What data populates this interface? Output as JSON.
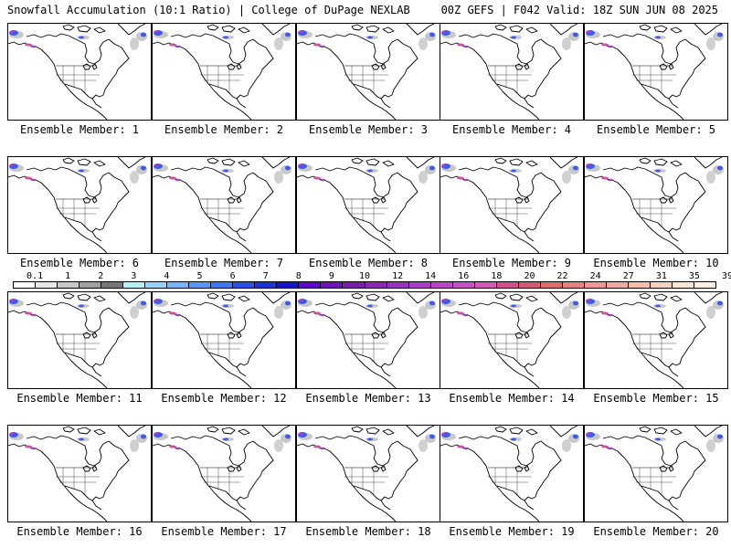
{
  "header": {
    "left": "Snowfall Accumulation (10:1 Ratio) | College of DuPage NEXLAB",
    "right": "00Z GEFS | F042 Valid: 18Z SUN JUN 08 2025"
  },
  "colors": {
    "map_lines": "#000000",
    "snow_light": "#c8c8c8",
    "snow_blue": "#3c5af0",
    "snow_purple": "#a040c0",
    "snow_pink": "#d050a0"
  },
  "panels": [
    {
      "caption": "Ensemble Member: 1"
    },
    {
      "caption": "Ensemble Member: 2"
    },
    {
      "caption": "Ensemble Member: 3"
    },
    {
      "caption": "Ensemble Member: 4"
    },
    {
      "caption": "Ensemble Member: 5"
    },
    {
      "caption": "Ensemble Member: 6"
    },
    {
      "caption": "Ensemble Member: 7"
    },
    {
      "caption": "Ensemble Member: 8"
    },
    {
      "caption": "Ensemble Member: 9"
    },
    {
      "caption": "Ensemble Member: 10"
    },
    {
      "caption": "Ensemble Member: 11"
    },
    {
      "caption": "Ensemble Member: 12"
    },
    {
      "caption": "Ensemble Member: 13"
    },
    {
      "caption": "Ensemble Member: 14"
    },
    {
      "caption": "Ensemble Member: 15"
    },
    {
      "caption": "Ensemble Member: 16"
    },
    {
      "caption": "Ensemble Member: 17"
    },
    {
      "caption": "Ensemble Member: 18"
    },
    {
      "caption": "Ensemble Member: 19"
    },
    {
      "caption": "Ensemble Member: 20"
    }
  ],
  "scale": {
    "labels": [
      "0.1",
      "1",
      "2",
      "3",
      "4",
      "5",
      "6",
      "7",
      "8",
      "9",
      "10",
      "12",
      "14",
      "16",
      "18",
      "20",
      "22",
      "24",
      "27",
      "31",
      "35",
      "39"
    ],
    "colors": [
      "#ffffff",
      "#e6e6e6",
      "#c8c8c8",
      "#a0a0a0",
      "#787878",
      "#b4f0fa",
      "#96d2fa",
      "#78b4fa",
      "#5a96f5",
      "#3c78f0",
      "#2850e6",
      "#1e32d2",
      "#1414c8",
      "#5a0ac8",
      "#6e14b4",
      "#7d1eaa",
      "#8c28b4",
      "#9b32be",
      "#aa3cc8",
      "#b946c8",
      "#c850c8",
      "#d25ab4",
      "#d2508c",
      "#d25a78",
      "#dc6e6e",
      "#e68282",
      "#f09696",
      "#f0aaa0",
      "#f5beaa",
      "#f5d2be",
      "#fae6d2",
      "#fff0e6"
    ]
  }
}
